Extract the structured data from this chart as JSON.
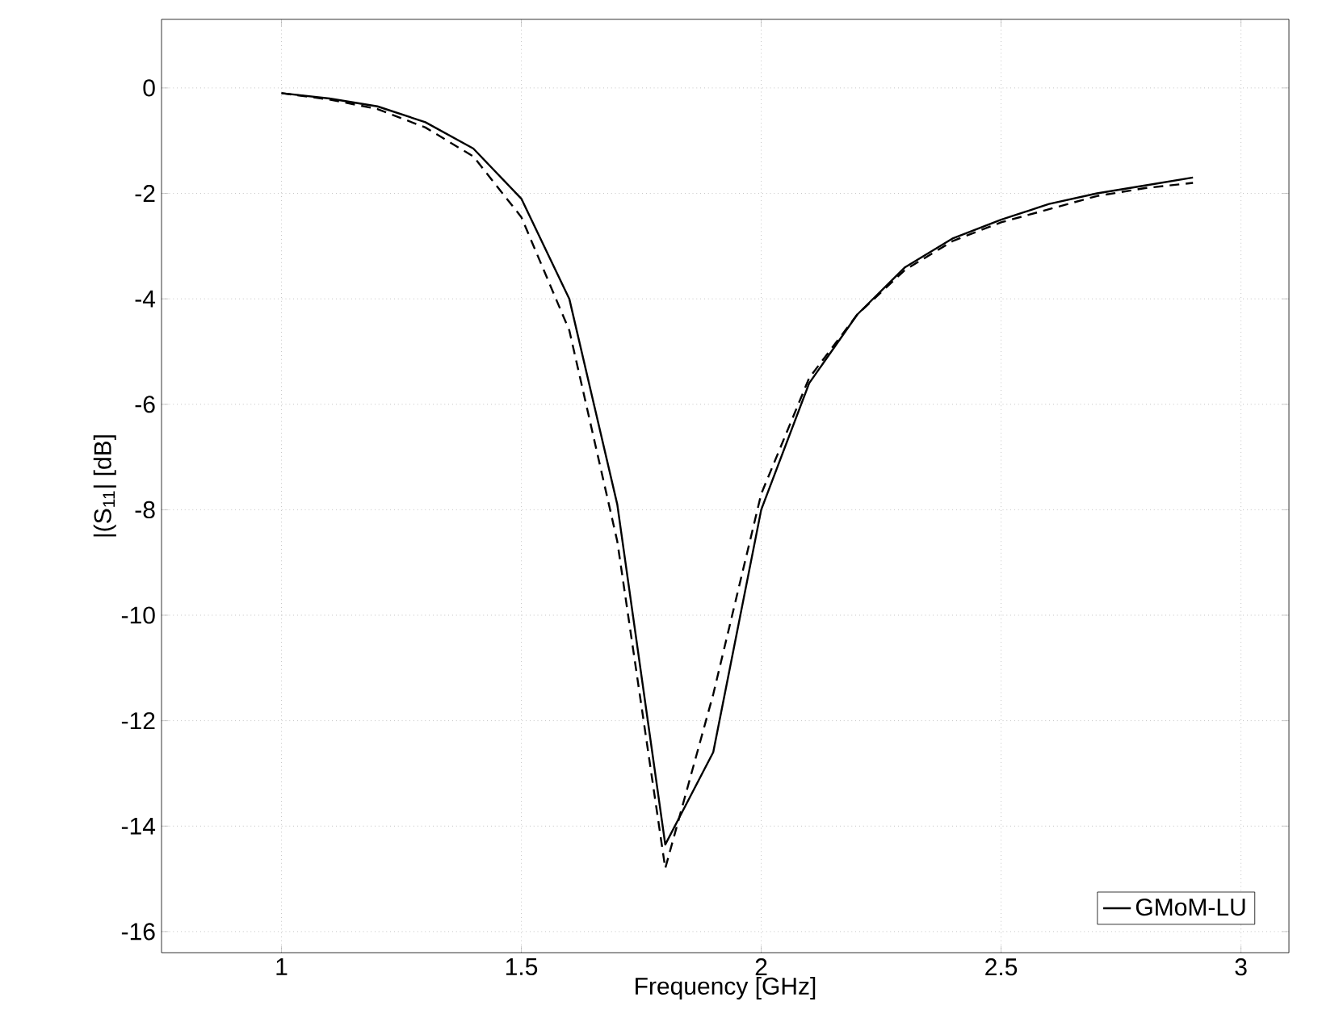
{
  "chart_data": {
    "type": "line",
    "xlabel": "Frequency [GHz]",
    "ylabel": "|(S$_{11}$| [dB]",
    "xlim": [
      0.75,
      3.1
    ],
    "ylim": [
      -16.4,
      1.3
    ],
    "xticks": [
      1,
      1.5,
      2,
      2.5,
      3
    ],
    "yticks": [
      0,
      -2,
      -4,
      -6,
      -8,
      -10,
      -12,
      -14,
      -16
    ],
    "grid": true,
    "legend": "bottom right",
    "x": [
      1.0,
      1.1,
      1.2,
      1.3,
      1.4,
      1.5,
      1.6,
      1.7,
      1.8,
      1.9,
      2.0,
      2.1,
      2.2,
      2.3,
      2.4,
      2.5,
      2.6,
      2.7,
      2.8,
      2.9
    ],
    "series": [
      {
        "name": "GMoM-LU",
        "color": "#000000",
        "line_style": "solid",
        "values": [
          -0.1,
          -0.2,
          -0.35,
          -0.65,
          -1.15,
          -2.1,
          -4.0,
          -7.9,
          -14.35,
          -12.6,
          -8.0,
          -5.6,
          -4.3,
          -3.4,
          -2.85,
          -2.5,
          -2.2,
          -2.0,
          -1.85,
          -1.7
        ]
      },
      {
        "color": "#000000",
        "line_style": "dashed",
        "values": [
          -0.1,
          -0.22,
          -0.4,
          -0.75,
          -1.3,
          -2.45,
          -4.6,
          -8.6,
          -14.8,
          -11.5,
          -7.7,
          -5.5,
          -4.3,
          -3.45,
          -2.9,
          -2.55,
          -2.3,
          -2.05,
          -1.9,
          -1.8
        ]
      }
    ]
  }
}
